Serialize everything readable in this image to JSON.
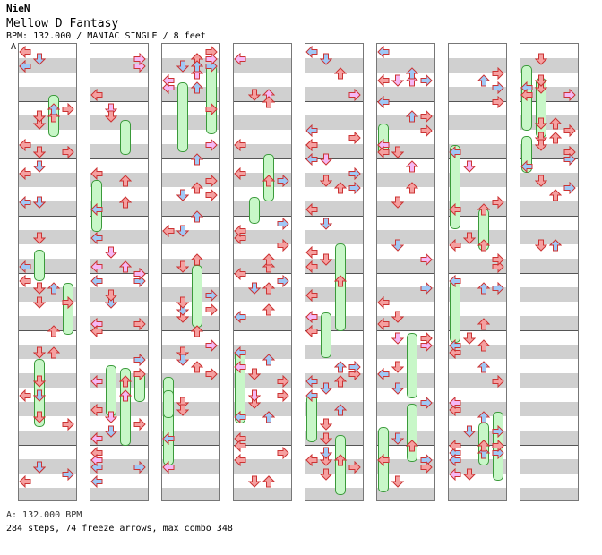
{
  "header": {
    "artist": "NieN",
    "title": "Mellow D Fantasy",
    "meta": "BPM: 132.000 / MANIAC SINGLE / 8 feet"
  },
  "segment_label": "A",
  "footer": {
    "bpm_line": "A: 132.000 BPM",
    "stats_line": "284 steps, 74 freeze arrows, max combo 348"
  },
  "colors": {
    "left": "#f5a0a0",
    "down": "#a0c8f5",
    "up": "#f5a0a0",
    "right": "#f5a0a0",
    "pink": "#f5b8f5",
    "freeze": "#c8f7c8"
  },
  "chart": {
    "steps": 284,
    "freeze_arrows": 74,
    "max_combo": 348,
    "columns_drawn": 8
  }
}
